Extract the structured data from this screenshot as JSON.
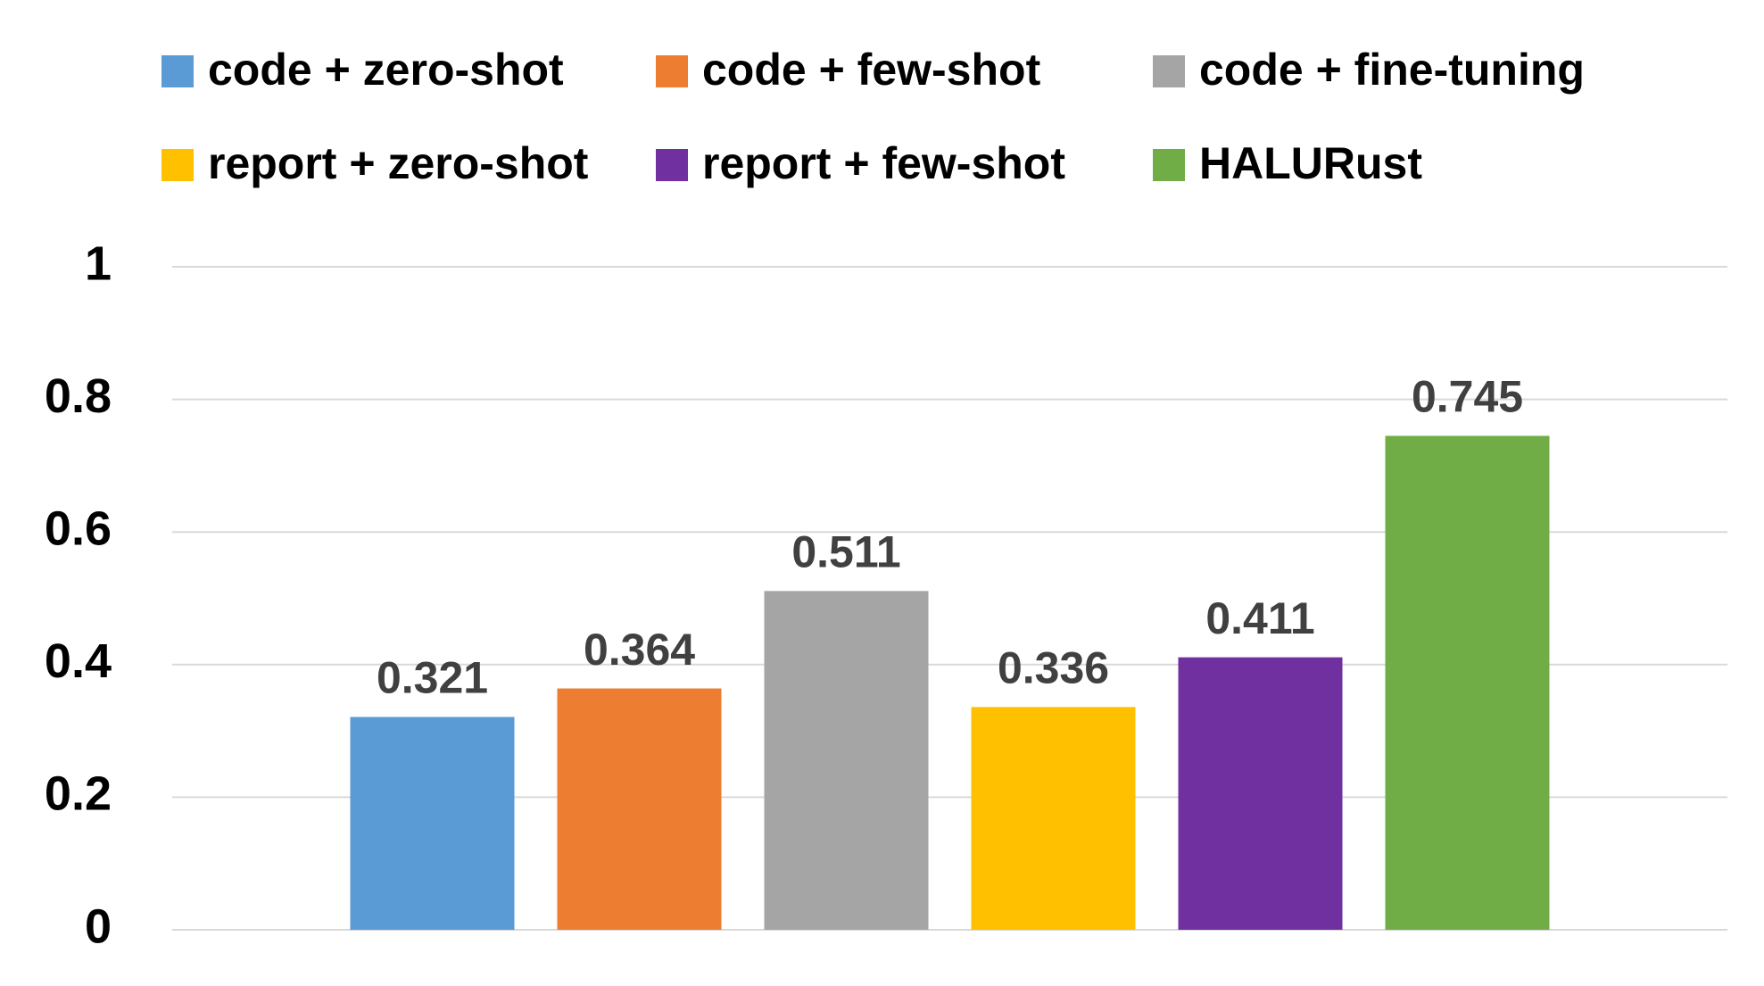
{
  "chart_data": {
    "type": "bar",
    "categories": [
      null
    ],
    "series": [
      {
        "name": "code + zero-shot",
        "color": "#5b9bd5",
        "values": [
          0.321
        ]
      },
      {
        "name": "code + few-shot",
        "color": "#ed7d31",
        "values": [
          0.364
        ]
      },
      {
        "name": "code + fine-tuning",
        "color": "#a5a5a5",
        "values": [
          0.511
        ]
      },
      {
        "name": "report + zero-shot",
        "color": "#ffc000",
        "values": [
          0.336
        ]
      },
      {
        "name": "report + few-shot",
        "color": "#7030a0",
        "values": [
          0.411
        ]
      },
      {
        "name": "HALURust",
        "color": "#70ad47",
        "values": [
          0.745
        ]
      }
    ],
    "ylim": [
      0,
      1
    ],
    "yticks": [
      0,
      0.2,
      0.4,
      0.6,
      0.8,
      1
    ],
    "grid": true,
    "legend": "top"
  }
}
